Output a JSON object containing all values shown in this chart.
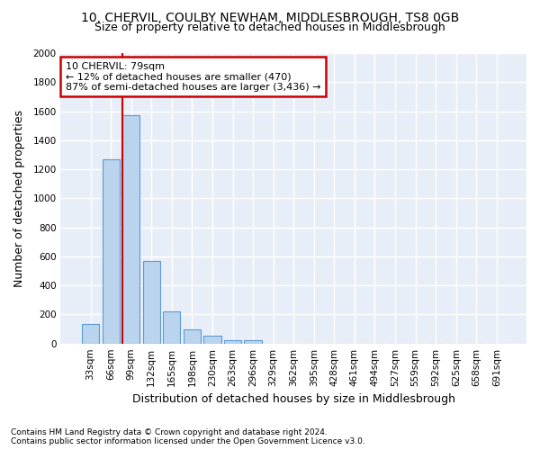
{
  "title": "10, CHERVIL, COULBY NEWHAM, MIDDLESBROUGH, TS8 0GB",
  "subtitle": "Size of property relative to detached houses in Middlesbrough",
  "xlabel": "Distribution of detached houses by size in Middlesbrough",
  "ylabel": "Number of detached properties",
  "categories": [
    "33sqm",
    "66sqm",
    "99sqm",
    "132sqm",
    "165sqm",
    "198sqm",
    "230sqm",
    "263sqm",
    "296sqm",
    "329sqm",
    "362sqm",
    "395sqm",
    "428sqm",
    "461sqm",
    "494sqm",
    "527sqm",
    "559sqm",
    "592sqm",
    "625sqm",
    "658sqm",
    "691sqm"
  ],
  "values": [
    135,
    1270,
    1570,
    570,
    220,
    95,
    52,
    25,
    20,
    0,
    0,
    0,
    0,
    0,
    0,
    0,
    0,
    0,
    0,
    0,
    0
  ],
  "bar_color": "#bad4ee",
  "bar_edge_color": "#5b9bd5",
  "red_line_x": 1.55,
  "annotation_text": "10 CHERVIL: 79sqm\n← 12% of detached houses are smaller (470)\n87% of semi-detached houses are larger (3,436) →",
  "annotation_box_color": "white",
  "annotation_box_edge_color": "#cc0000",
  "vline_color": "#cc0000",
  "ylim": [
    0,
    2000
  ],
  "yticks": [
    0,
    200,
    400,
    600,
    800,
    1000,
    1200,
    1400,
    1600,
    1800,
    2000
  ],
  "footer": "Contains HM Land Registry data © Crown copyright and database right 2024.\nContains public sector information licensed under the Open Government Licence v3.0.",
  "background_color": "#ffffff",
  "plot_background_color": "#e8eef7",
  "grid_color": "#ffffff",
  "title_fontsize": 10,
  "subtitle_fontsize": 9,
  "axis_label_fontsize": 9,
  "tick_fontsize": 7.5,
  "annotation_fontsize": 8,
  "footer_fontsize": 6.5
}
